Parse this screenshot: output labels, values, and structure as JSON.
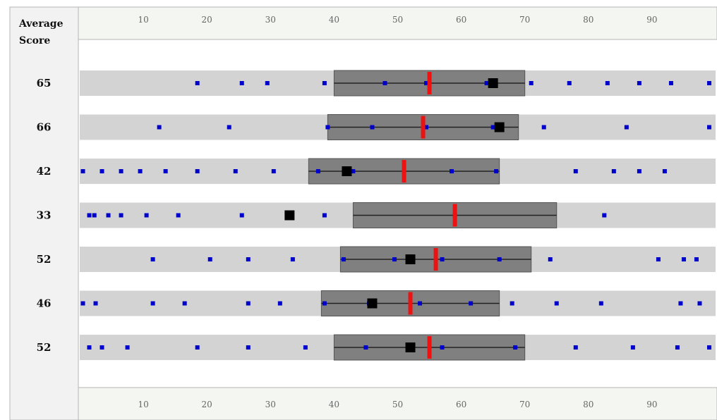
{
  "chart_data": {
    "type": "scatter",
    "title": "",
    "row_header": "Average Score",
    "xlim": [
      0,
      100
    ],
    "x_ticks": [
      10,
      20,
      30,
      40,
      50,
      60,
      70,
      80,
      90
    ],
    "rows": [
      {
        "label": "65",
        "range": [
          40,
          70
        ],
        "average": 65,
        "marker": 55,
        "points": [
          18.5,
          25.5,
          29.5,
          38.5,
          48,
          54.5,
          64,
          71,
          77,
          83,
          88,
          93,
          99
        ]
      },
      {
        "label": "66",
        "range": [
          39,
          69
        ],
        "average": 66,
        "marker": 54,
        "points": [
          12.5,
          23.5,
          39,
          46,
          54.5,
          65,
          73,
          86,
          99
        ]
      },
      {
        "label": "42",
        "range": [
          36,
          66
        ],
        "average": 42,
        "marker": 51,
        "points": [
          0.5,
          3.5,
          6.5,
          9.5,
          13.5,
          18.5,
          24.5,
          30.5,
          37.5,
          43,
          51,
          58.5,
          65.5,
          78,
          84,
          88,
          92
        ]
      },
      {
        "label": "33",
        "range": [
          43,
          75
        ],
        "average": 33,
        "marker": 59,
        "points": [
          1.5,
          2.3,
          4.5,
          6.5,
          10.5,
          15.5,
          25.5,
          38.5,
          59,
          82.5
        ]
      },
      {
        "label": "52",
        "range": [
          41,
          71
        ],
        "average": 52,
        "marker": 56,
        "points": [
          11.5,
          20.5,
          26.5,
          33.5,
          41.5,
          49.5,
          57,
          66,
          74,
          91,
          95,
          97
        ]
      },
      {
        "label": "46",
        "range": [
          38,
          66
        ],
        "average": 46,
        "marker": 52,
        "points": [
          0.5,
          2.5,
          11.5,
          16.5,
          26.5,
          31.5,
          38.5,
          45.5,
          53.5,
          61.5,
          68,
          75,
          82,
          94.5,
          97.5
        ]
      },
      {
        "label": "52",
        "range": [
          40,
          70
        ],
        "average": 52,
        "marker": 55,
        "points": [
          1.5,
          3.5,
          7.5,
          18.5,
          26.5,
          35.5,
          45,
          52,
          57,
          68.5,
          78,
          87,
          94,
          99
        ]
      }
    ],
    "colors": {
      "row_band": "#d3d3d3",
      "range_box": "#808080",
      "point": "#0000cc",
      "average": "#000000",
      "marker": "#ee1111",
      "grid_line": "#222222",
      "label_panel": "#f2f2f2",
      "axis_panel": "#f4f6f1"
    }
  }
}
